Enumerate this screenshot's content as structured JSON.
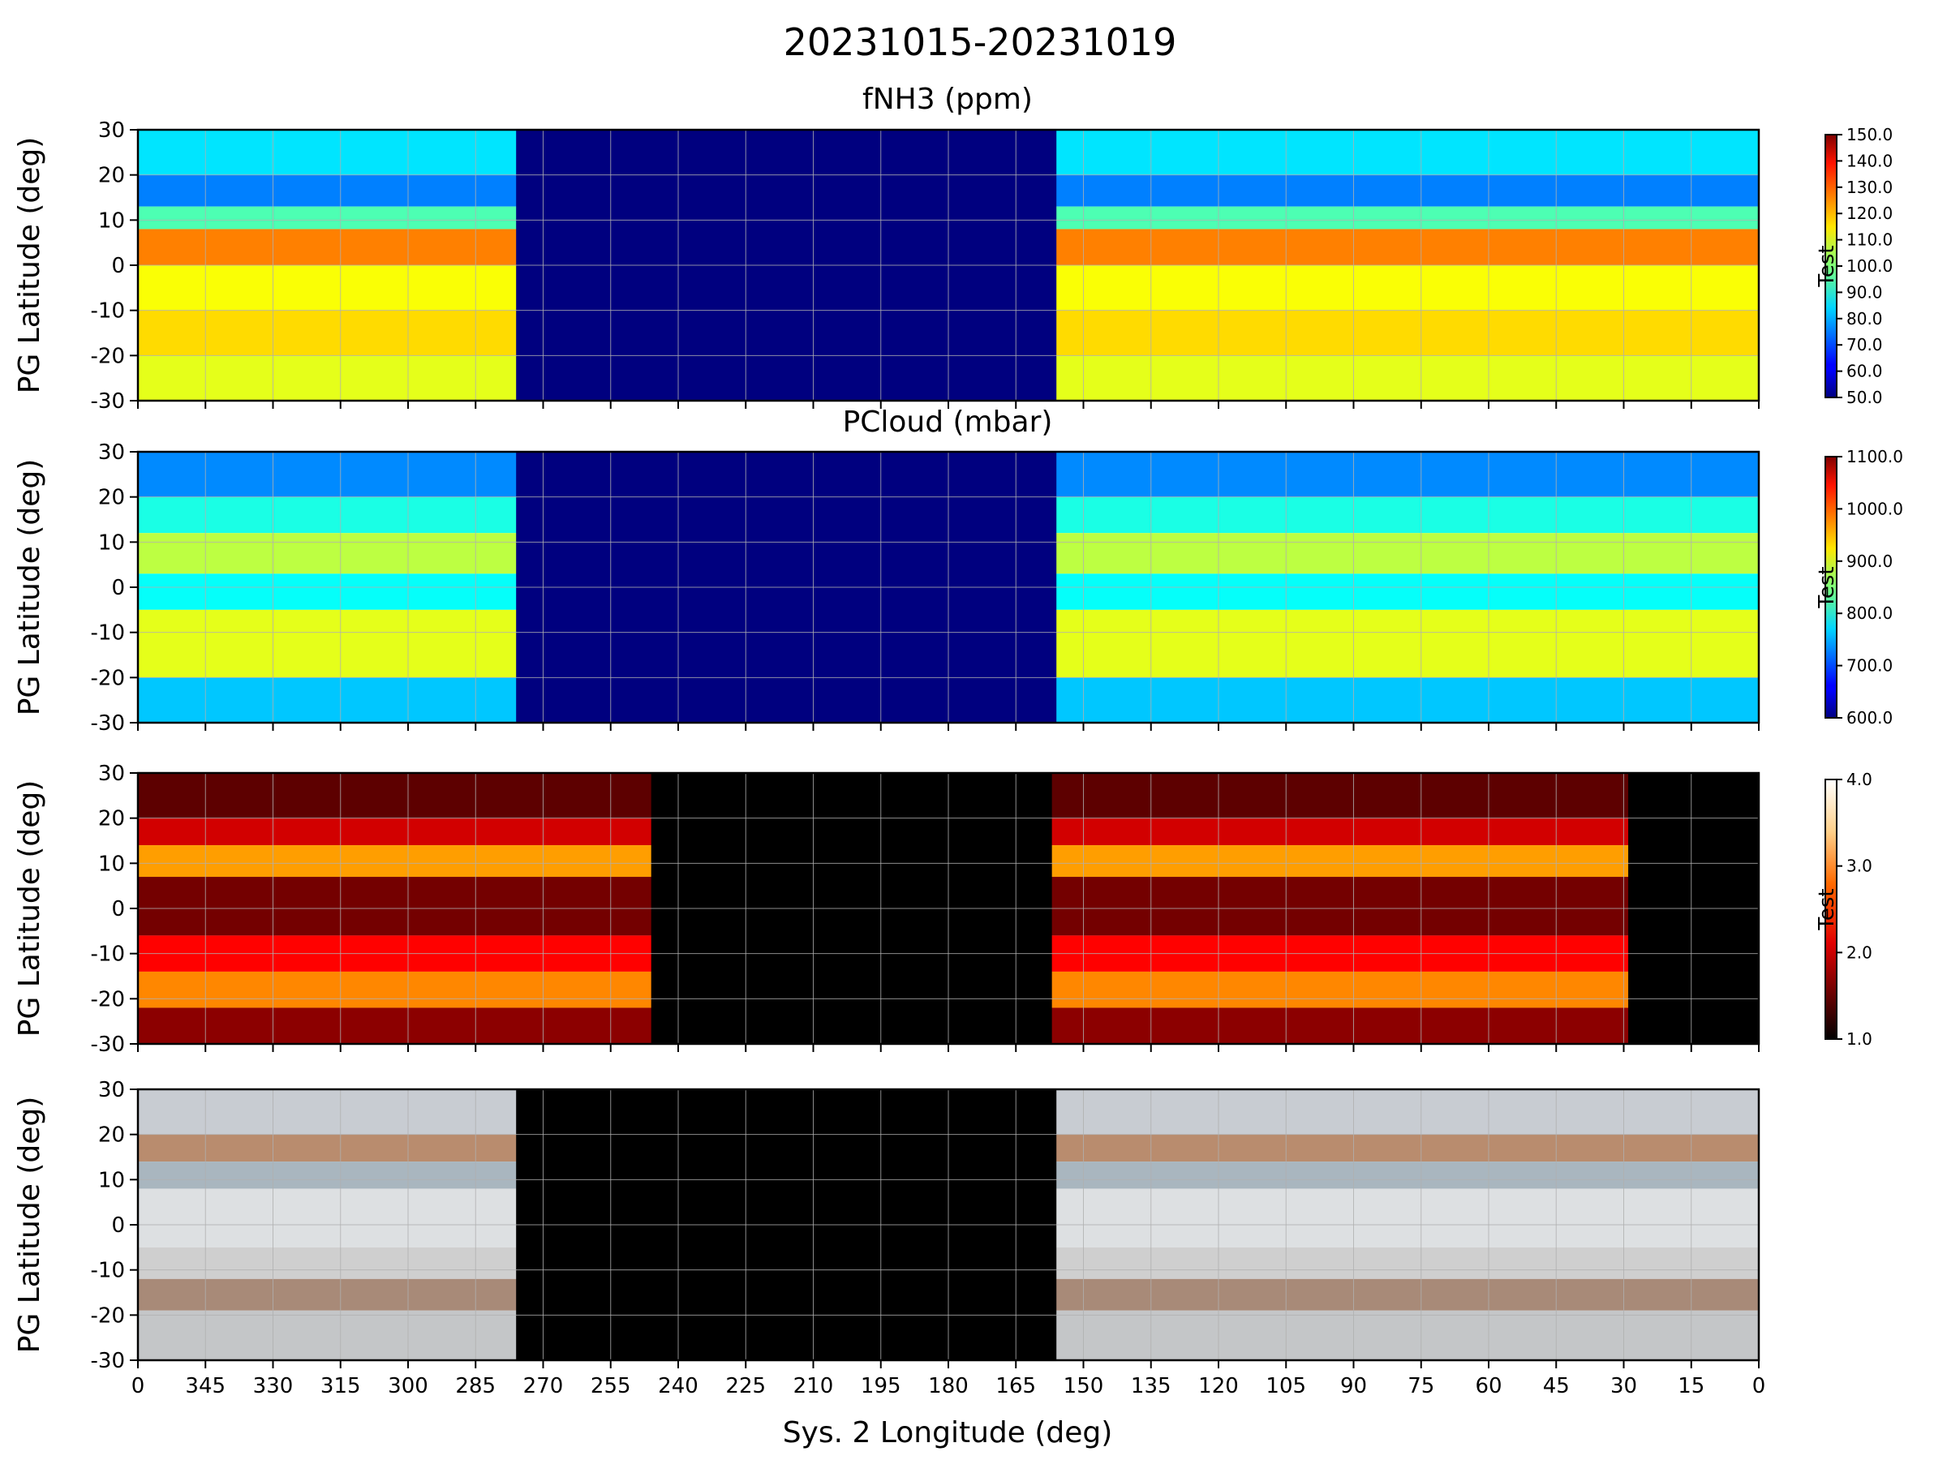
{
  "figure": {
    "title": "20231015-20231019"
  },
  "axes": {
    "ylabel": "PG Latitude (deg)",
    "xlabel": "Sys. 2 Longitude (deg)",
    "ylim": [
      -30,
      30
    ],
    "yticks": [
      "30",
      "20",
      "10",
      "0",
      "-10",
      "-20",
      "-30"
    ],
    "xticks": [
      "0",
      "345",
      "330",
      "315",
      "300",
      "285",
      "270",
      "255",
      "240",
      "225",
      "210",
      "195",
      "180",
      "165",
      "150",
      "135",
      "120",
      "105",
      "90",
      "75",
      "60",
      "45",
      "30",
      "15",
      "0"
    ],
    "grid": true
  },
  "chart_data": [
    {
      "type": "heatmap",
      "title": "fNH3 (ppm)",
      "colormap": "jet",
      "colorbar": {
        "label": "Test",
        "range": [
          50,
          150
        ],
        "ticks": [
          "150.0",
          "140.0",
          "130.0",
          "120.0",
          "110.0",
          "100.0",
          "90.0",
          "80.0",
          "70.0",
          "60.0",
          "50.0"
        ]
      },
      "no_data_longitude_range": [
        276,
        156
      ],
      "bands": [
        {
          "lat": [
            20,
            30
          ],
          "value": 85
        },
        {
          "lat": [
            13,
            20
          ],
          "value": 75
        },
        {
          "lat": [
            8,
            13
          ],
          "value": 95
        },
        {
          "lat": [
            0,
            8
          ],
          "value": 125
        },
        {
          "lat": [
            -10,
            0
          ],
          "value": 112
        },
        {
          "lat": [
            -20,
            -10
          ],
          "value": 116
        },
        {
          "lat": [
            -30,
            -20
          ],
          "value": 110
        }
      ]
    },
    {
      "type": "heatmap",
      "title": "PCloud (mbar)",
      "colormap": "jet",
      "colorbar": {
        "label": "Test",
        "range": [
          600,
          1100
        ],
        "ticks": [
          "1100.0",
          "1000.0",
          "900.0",
          "800.0",
          "700.0",
          "600.0"
        ]
      },
      "no_data_longitude_range": [
        276,
        156
      ],
      "bands": [
        {
          "lat": [
            20,
            30
          ],
          "value": 730
        },
        {
          "lat": [
            12,
            20
          ],
          "value": 800
        },
        {
          "lat": [
            3,
            12
          ],
          "value": 880
        },
        {
          "lat": [
            -5,
            3
          ],
          "value": 790
        },
        {
          "lat": [
            -20,
            -5
          ],
          "value": 900
        },
        {
          "lat": [
            -30,
            -20
          ],
          "value": 760
        }
      ]
    },
    {
      "type": "heatmap",
      "colormap": "hot",
      "colorbar": {
        "label": "Test",
        "range": [
          1,
          4
        ],
        "ticks": [
          "4.0",
          "3.0",
          "2.0",
          "1.0"
        ]
      },
      "no_data_longitude_ranges": [
        [
          246,
          157
        ],
        [
          29,
          0
        ]
      ],
      "bands": [
        {
          "lat": [
            20,
            30
          ],
          "value": 1.4
        },
        {
          "lat": [
            14,
            20
          ],
          "value": 1.9
        },
        {
          "lat": [
            7,
            14
          ],
          "value": 2.8
        },
        {
          "lat": [
            -6,
            7
          ],
          "value": 1.5
        },
        {
          "lat": [
            -14,
            -6
          ],
          "value": 2.1
        },
        {
          "lat": [
            -22,
            -14
          ],
          "value": 2.7
        },
        {
          "lat": [
            -30,
            -22
          ],
          "value": 1.6
        }
      ]
    },
    {
      "type": "image",
      "description_role": "true-color mosaic",
      "no_data_longitude_range": [
        276,
        156
      ],
      "bands": [
        {
          "lat": [
            20,
            30
          ],
          "color": "#c8ccd2"
        },
        {
          "lat": [
            14,
            20
          ],
          "color": "#b98c6e"
        },
        {
          "lat": [
            8,
            14
          ],
          "color": "#a9b6bf"
        },
        {
          "lat": [
            -5,
            8
          ],
          "color": "#dde0e2"
        },
        {
          "lat": [
            -12,
            -5
          ],
          "color": "#cfcfcf"
        },
        {
          "lat": [
            -19,
            -12
          ],
          "color": "#a88a78"
        },
        {
          "lat": [
            -30,
            -19
          ],
          "color": "#c4c6c8"
        }
      ]
    }
  ]
}
